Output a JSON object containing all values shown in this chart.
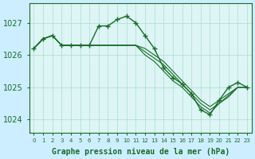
{
  "background_color": "#cceeff",
  "plot_bg_color": "#ddf5f5",
  "grid_color": "#aaddcc",
  "line_color": "#1a6b2a",
  "title": "Graphe pression niveau de la mer (hPa)",
  "xlabel_hours": [
    0,
    1,
    2,
    3,
    4,
    5,
    6,
    7,
    8,
    9,
    10,
    11,
    12,
    13,
    14,
    15,
    16,
    17,
    18,
    19,
    20,
    21,
    22,
    23
  ],
  "yticks": [
    1024,
    1025,
    1026,
    1027
  ],
  "ylim": [
    1023.6,
    1027.6
  ],
  "xlim": [
    -0.5,
    23.5
  ],
  "series": [
    [
      1026.2,
      1026.5,
      1026.6,
      1026.3,
      1026.3,
      1026.3,
      1026.3,
      1026.9,
      1026.9,
      1027.1,
      1027.2,
      1027.0,
      1026.6,
      1026.2,
      1025.6,
      1025.3,
      1025.1,
      1024.8,
      1024.3,
      1024.15,
      1024.6,
      1025.0,
      1025.15,
      1025.0
    ],
    [
      1026.2,
      1026.5,
      1026.6,
      1026.3,
      1026.3,
      1026.3,
      1026.3,
      1026.3,
      1026.3,
      1026.3,
      1026.3,
      1026.3,
      1026.2,
      1026.0,
      1025.8,
      1025.5,
      1025.2,
      1024.9,
      1024.6,
      1024.4,
      1024.6,
      1024.8,
      1025.0,
      1025.0
    ],
    [
      1026.2,
      1026.5,
      1026.6,
      1026.3,
      1026.3,
      1026.3,
      1026.3,
      1026.3,
      1026.3,
      1026.3,
      1026.3,
      1026.3,
      1026.1,
      1025.9,
      1025.7,
      1025.4,
      1025.1,
      1024.8,
      1024.5,
      1024.3,
      1024.5,
      1024.75,
      1025.0,
      1025.0
    ],
    [
      1026.2,
      1026.5,
      1026.6,
      1026.3,
      1026.3,
      1026.3,
      1026.3,
      1026.3,
      1026.3,
      1026.3,
      1026.3,
      1026.3,
      1026.0,
      1025.8,
      1025.5,
      1025.2,
      1025.0,
      1024.7,
      1024.4,
      1024.2,
      1024.5,
      1024.7,
      1025.0,
      1025.0
    ]
  ]
}
